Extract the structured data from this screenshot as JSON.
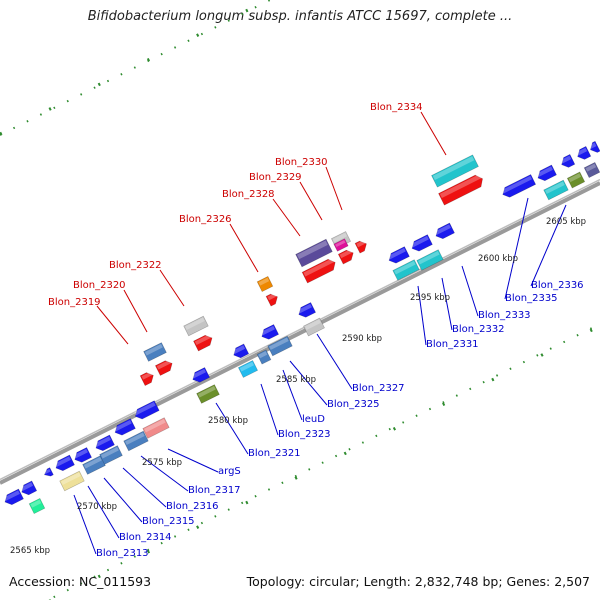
{
  "title": "Bifidobacterium longum subsp. infantis ATCC 15697, complete ...",
  "footer": {
    "accession": "Accession: NC_011593",
    "topology": "Topology: circular; Length: 2,832,748 bp; Genes: 2,507"
  },
  "colors": {
    "forward_label": "#cc0000",
    "reverse_label": "#0000cc",
    "backbone": "#888888",
    "tick": "#2e8b2e"
  },
  "kbp_ticks": [
    "2565 kbp",
    "2570 kbp",
    "2575 kbp",
    "2580 kbp",
    "2585 kbp",
    "2590 kbp",
    "2595 kbp",
    "2600 kbp",
    "2605 kbp"
  ],
  "genes_top": [
    {
      "label": "Blon_2319",
      "color": "#cc0000"
    },
    {
      "label": "Blon_2320",
      "color": "#cc0000"
    },
    {
      "label": "Blon_2322",
      "color": "#cc0000"
    },
    {
      "label": "Blon_2326",
      "color": "#cc0000"
    },
    {
      "label": "Blon_2328",
      "color": "#cc0000"
    },
    {
      "label": "Blon_2329",
      "color": "#cc0000"
    },
    {
      "label": "Blon_2330",
      "color": "#cc0000"
    },
    {
      "label": "Blon_2334",
      "color": "#cc0000"
    }
  ],
  "genes_bottom": [
    {
      "label": "Blon_2313",
      "color": "#0000cc"
    },
    {
      "label": "Blon_2314",
      "color": "#0000cc"
    },
    {
      "label": "Blon_2315",
      "color": "#0000cc"
    },
    {
      "label": "Blon_2316",
      "color": "#0000cc"
    },
    {
      "label": "Blon_2317",
      "color": "#0000cc"
    },
    {
      "label": "argS",
      "color": "#0000cc"
    },
    {
      "label": "Blon_2321",
      "color": "#0000cc"
    },
    {
      "label": "Blon_2323",
      "color": "#0000cc"
    },
    {
      "label": "leuD",
      "color": "#0000cc"
    },
    {
      "label": "Blon_2325",
      "color": "#0000cc"
    },
    {
      "label": "Blon_2327",
      "color": "#0000cc"
    },
    {
      "label": "Blon_2331",
      "color": "#0000cc"
    },
    {
      "label": "Blon_2332",
      "color": "#0000cc"
    },
    {
      "label": "Blon_2333",
      "color": "#0000cc"
    },
    {
      "label": "Blon_2335",
      "color": "#0000cc"
    },
    {
      "label": "Blon_2336",
      "color": "#0000cc"
    }
  ]
}
